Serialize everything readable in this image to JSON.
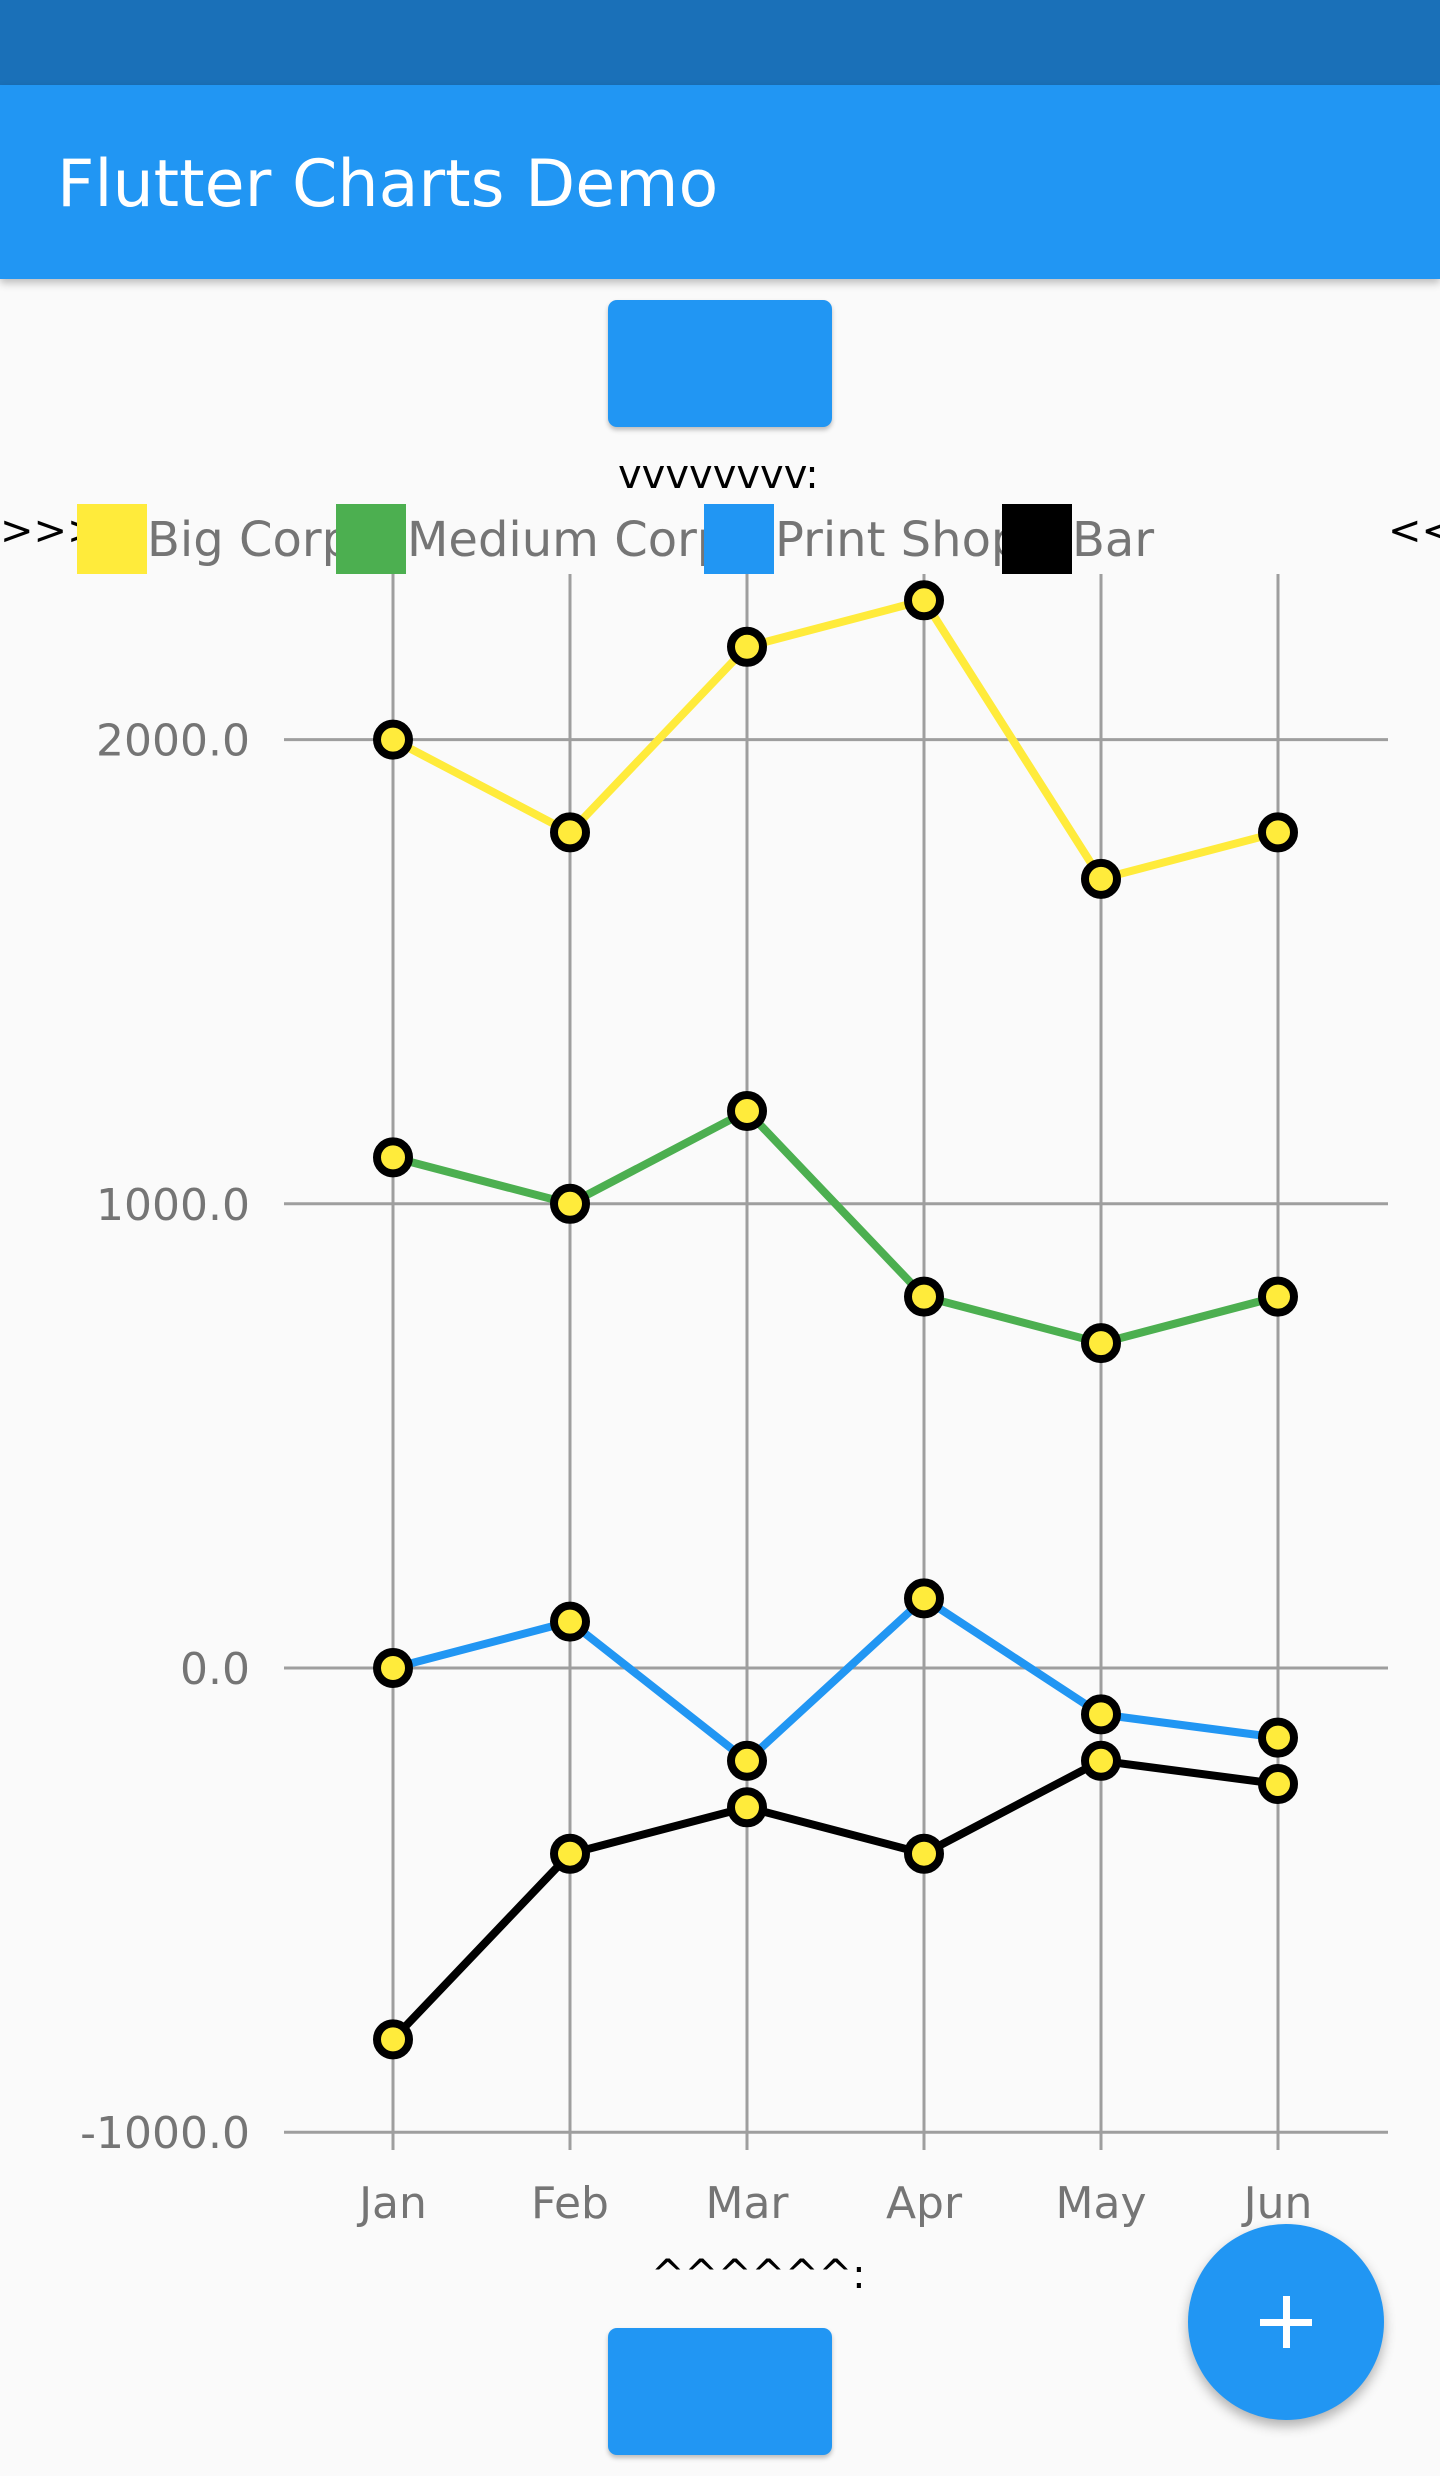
{
  "app": {
    "title": "Flutter Charts Demo"
  },
  "markers": {
    "top": "vvvvvvvv:",
    "bottom": "^^^^^^:",
    "scroll_left": ">>>",
    "scroll_right": "<<"
  },
  "fab": {
    "icon": "plus-icon"
  },
  "colors": {
    "app_bar": "#2196f3",
    "status_bar": "#1a70b8",
    "point_fill": "#ffeb3b",
    "point_stroke": "#000000",
    "grid": "#9e9e9e",
    "label": "#757575"
  },
  "chart_data": {
    "type": "line",
    "categories": [
      "Jan",
      "Feb",
      "Mar",
      "Apr",
      "May",
      "Jun"
    ],
    "yticks": [
      "2000.0",
      "1000.0",
      "0.0",
      "-1000.0"
    ],
    "ytick_values": [
      2000,
      1000,
      0,
      -1000
    ],
    "ylim": [
      -1000,
      2300
    ],
    "grid": true,
    "legend_position": "top",
    "series": [
      {
        "name": "Big Corp",
        "color": "#ffeb3b",
        "values": [
          2000,
          1800,
          2200,
          2300,
          1700,
          1800
        ]
      },
      {
        "name": "Medium Corp",
        "color": "#4caf50",
        "values": [
          1100,
          1000,
          1200,
          800,
          700,
          800
        ]
      },
      {
        "name": "Print Shop",
        "color": "#2196f3",
        "values": [
          0,
          100,
          -200,
          150,
          -100,
          -150
        ]
      },
      {
        "name": "Bar",
        "color": "#000000",
        "values": [
          -800,
          -400,
          -300,
          -400,
          -200,
          -250
        ]
      }
    ]
  }
}
